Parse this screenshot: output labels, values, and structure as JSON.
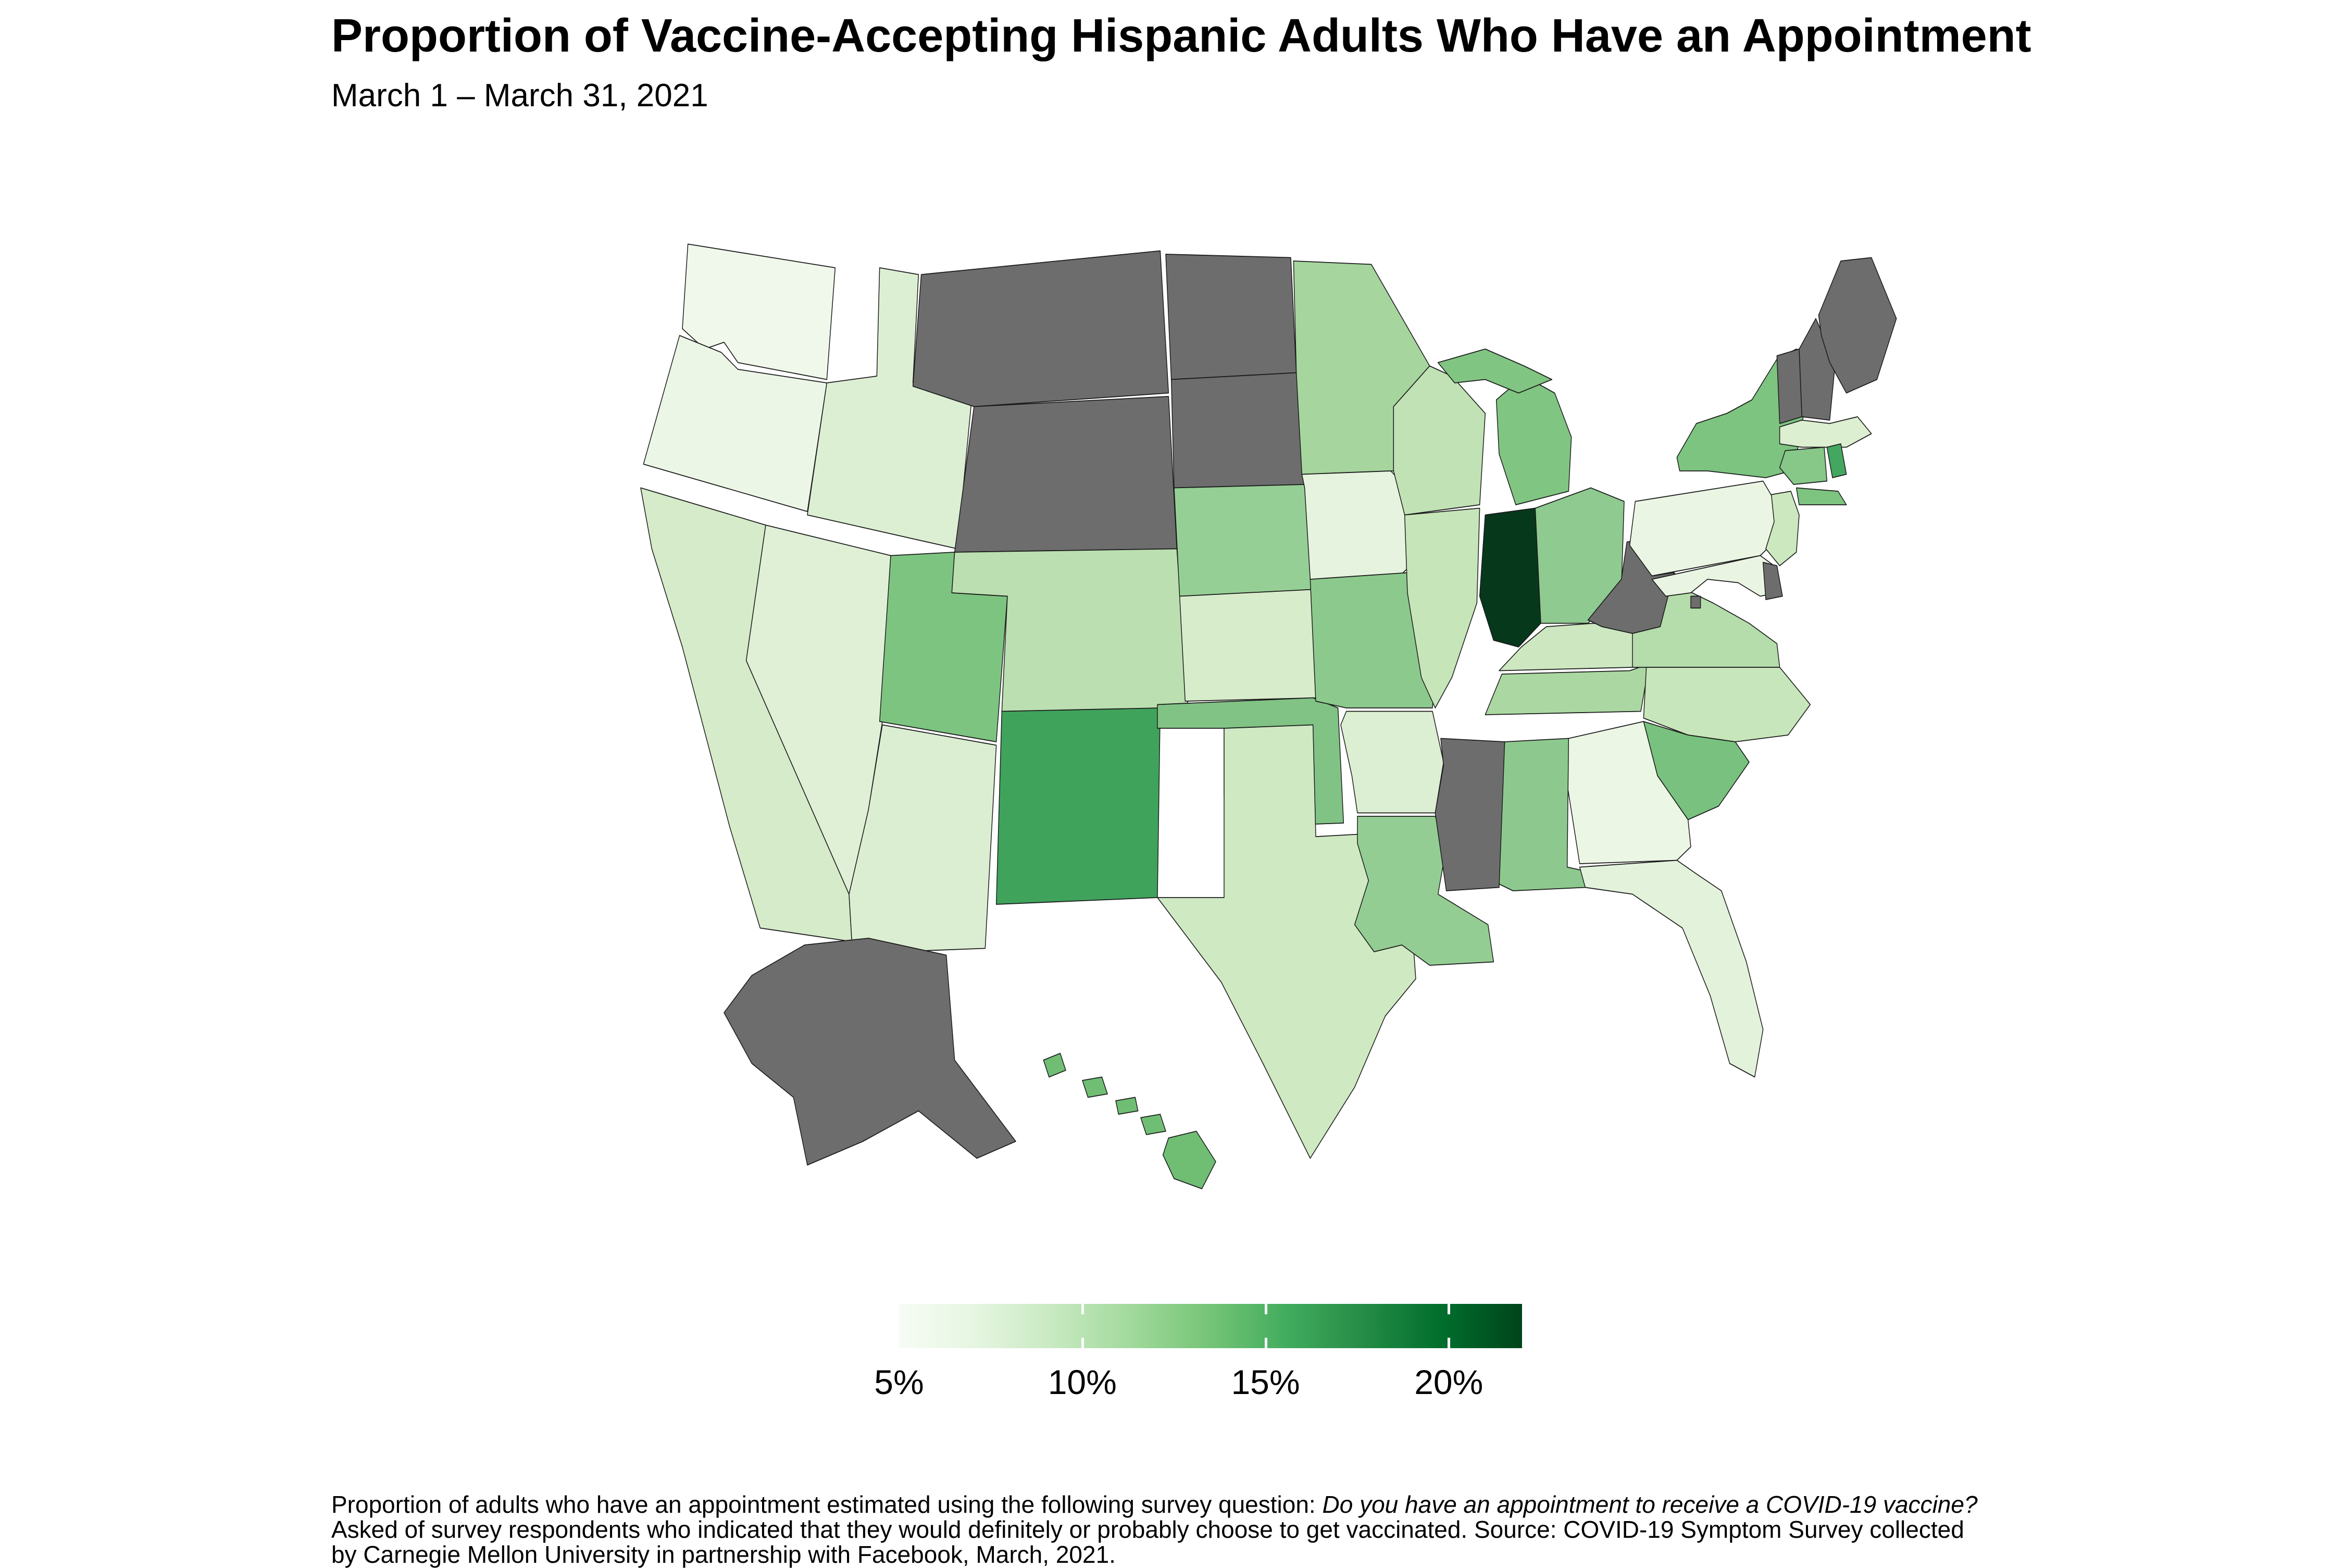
{
  "title": "Proportion of Vaccine-Accepting Hispanic Adults Who Have an Appointment",
  "subtitle": "March 1 – March 31, 2021",
  "legend": {
    "ticks": [
      "5%",
      "10%",
      "15%",
      "20%"
    ],
    "tick_values_pct": [
      5,
      10,
      15,
      20
    ],
    "scale_min_pct": 5,
    "scale_max_pct": 22,
    "gradient": [
      "#f7fcf5",
      "#e5f5e0",
      "#c7e9c0",
      "#a1d99b",
      "#74c476",
      "#41ab5d",
      "#238b45",
      "#006d2c",
      "#00441b"
    ],
    "no_data_color": "#6d6d6d"
  },
  "footnote": {
    "line1_normal": "Proportion of adults who have an appointment estimated using the following survey question: ",
    "line1_italic": "Do you have an appointment to receive a COVID-19 vaccine?",
    "line2": "Asked of survey respondents who indicated that they would definitely or probably choose to get vaccinated. Source: COVID-19 Symptom Survey collected",
    "line3": "by Carnegie Mellon University in partnership with Facebook, March, 2021."
  },
  "chart_data": {
    "type": "choropleth_map",
    "region": "United States (states, with Alaska and Hawaii insets)",
    "metric": "Proportion of vaccine-accepting Hispanic adults who have an appointment (%)",
    "date_range": "March 1 – March 31, 2021",
    "legend_position": "bottom-center horizontal colorbar",
    "scale": {
      "type": "sequential-greens",
      "min_pct": 5,
      "max_pct": 22,
      "no_data": "gray"
    },
    "states": [
      {
        "abbr": "WA",
        "name": "Washington",
        "value_pct_est": 5.8,
        "no_data": false,
        "fill": "#eff8eb"
      },
      {
        "abbr": "OR",
        "name": "Oregon",
        "value_pct_est": 6.1,
        "no_data": false,
        "fill": "#ecf6e7"
      },
      {
        "abbr": "CA",
        "name": "California",
        "value_pct_est": 8.4,
        "no_data": false,
        "fill": "#d5ebc9"
      },
      {
        "abbr": "NV",
        "name": "Nevada",
        "value_pct_est": 7.3,
        "no_data": false,
        "fill": "#e0f0d7"
      },
      {
        "abbr": "ID",
        "name": "Idaho",
        "value_pct_est": 8.0,
        "no_data": false,
        "fill": "#dcefd3"
      },
      {
        "abbr": "MT",
        "name": "Montana",
        "value_pct_est": null,
        "no_data": true,
        "fill": "#6d6d6d"
      },
      {
        "abbr": "WY",
        "name": "Wyoming",
        "value_pct_est": null,
        "no_data": true,
        "fill": "#6d6d6d"
      },
      {
        "abbr": "UT",
        "name": "Utah",
        "value_pct_est": 14.0,
        "no_data": false,
        "fill": "#7dc481"
      },
      {
        "abbr": "AZ",
        "name": "Arizona",
        "value_pct_est": 8.1,
        "no_data": false,
        "fill": "#dbeed1"
      },
      {
        "abbr": "CO",
        "name": "Colorado",
        "value_pct_est": 10.8,
        "no_data": false,
        "fill": "#bbdfb0"
      },
      {
        "abbr": "NM",
        "name": "New Mexico",
        "value_pct_est": 17.0,
        "no_data": false,
        "fill": "#3fa35c"
      },
      {
        "abbr": "ND",
        "name": "North Dakota",
        "value_pct_est": null,
        "no_data": true,
        "fill": "#6d6d6d"
      },
      {
        "abbr": "SD",
        "name": "South Dakota",
        "value_pct_est": null,
        "no_data": true,
        "fill": "#6d6d6d"
      },
      {
        "abbr": "NE",
        "name": "Nebraska",
        "value_pct_est": 12.8,
        "no_data": false,
        "fill": "#96cf96"
      },
      {
        "abbr": "KS",
        "name": "Kansas",
        "value_pct_est": 8.7,
        "no_data": false,
        "fill": "#d7ecca"
      },
      {
        "abbr": "OK",
        "name": "Oklahoma",
        "value_pct_est": 13.8,
        "no_data": false,
        "fill": "#80c384"
      },
      {
        "abbr": "TX",
        "name": "Texas",
        "value_pct_est": 9.2,
        "no_data": false,
        "fill": "#cfe9c3"
      },
      {
        "abbr": "MN",
        "name": "Minnesota",
        "value_pct_est": 11.6,
        "no_data": false,
        "fill": "#a6d59e"
      },
      {
        "abbr": "IA",
        "name": "Iowa",
        "value_pct_est": 6.6,
        "no_data": false,
        "fill": "#e6f3de"
      },
      {
        "abbr": "MO",
        "name": "Missouri",
        "value_pct_est": 13.4,
        "no_data": false,
        "fill": "#8cc98d"
      },
      {
        "abbr": "AR",
        "name": "Arkansas",
        "value_pct_est": 8.1,
        "no_data": false,
        "fill": "#dcefd2"
      },
      {
        "abbr": "LA",
        "name": "Louisiana",
        "value_pct_est": 12.4,
        "no_data": false,
        "fill": "#94cd93"
      },
      {
        "abbr": "WI",
        "name": "Wisconsin",
        "value_pct_est": 10.4,
        "no_data": false,
        "fill": "#c0e2b4"
      },
      {
        "abbr": "IL",
        "name": "Illinois",
        "value_pct_est": 10.2,
        "no_data": false,
        "fill": "#c6e5b9"
      },
      {
        "abbr": "MI",
        "name": "Michigan",
        "value_pct_est": 13.2,
        "no_data": false,
        "fill": "#81c583"
      },
      {
        "abbr": "IN",
        "name": "Indiana",
        "value_pct_est": 22.0,
        "no_data": false,
        "fill": "#06381c"
      },
      {
        "abbr": "OH",
        "name": "Ohio",
        "value_pct_est": 12.8,
        "no_data": false,
        "fill": "#8fca90"
      },
      {
        "abbr": "KY",
        "name": "Kentucky",
        "value_pct_est": 9.6,
        "no_data": false,
        "fill": "#cde8c1"
      },
      {
        "abbr": "TN",
        "name": "Tennessee",
        "value_pct_est": 11.4,
        "no_data": false,
        "fill": "#abd8a2"
      },
      {
        "abbr": "MS",
        "name": "Mississippi",
        "value_pct_est": null,
        "no_data": true,
        "fill": "#6d6d6d"
      },
      {
        "abbr": "AL",
        "name": "Alabama",
        "value_pct_est": 13.1,
        "no_data": false,
        "fill": "#8dc98e"
      },
      {
        "abbr": "GA",
        "name": "Georgia",
        "value_pct_est": 6.2,
        "no_data": false,
        "fill": "#ebf6e5"
      },
      {
        "abbr": "FL",
        "name": "Florida",
        "value_pct_est": 6.9,
        "no_data": false,
        "fill": "#e3f2db"
      },
      {
        "abbr": "SC",
        "name": "South Carolina",
        "value_pct_est": 14.0,
        "no_data": false,
        "fill": "#79c17e"
      },
      {
        "abbr": "NC",
        "name": "North Carolina",
        "value_pct_est": 9.8,
        "no_data": false,
        "fill": "#c8e6bb"
      },
      {
        "abbr": "VA",
        "name": "Virginia",
        "value_pct_est": 11.0,
        "no_data": false,
        "fill": "#b5dcab"
      },
      {
        "abbr": "WV",
        "name": "West Virginia",
        "value_pct_est": null,
        "no_data": true,
        "fill": "#6d6d6d"
      },
      {
        "abbr": "PA",
        "name": "Pennsylvania",
        "value_pct_est": 6.3,
        "no_data": false,
        "fill": "#eaf5e3"
      },
      {
        "abbr": "NY",
        "name": "New York",
        "value_pct_est": 13.9,
        "no_data": false,
        "fill": "#7cc480"
      },
      {
        "abbr": "NJ",
        "name": "New Jersey",
        "value_pct_est": 9.8,
        "no_data": false,
        "fill": "#cce8bf"
      },
      {
        "abbr": "DE",
        "name": "Delaware",
        "value_pct_est": null,
        "no_data": true,
        "fill": "#6d6d6d"
      },
      {
        "abbr": "MD",
        "name": "Maryland",
        "value_pct_est": 6.4,
        "no_data": false,
        "fill": "#e9f5e2"
      },
      {
        "abbr": "DC",
        "name": "District of Columbia",
        "value_pct_est": null,
        "no_data": true,
        "fill": "#6d6d6d"
      },
      {
        "abbr": "VT",
        "name": "Vermont",
        "value_pct_est": null,
        "no_data": true,
        "fill": "#6d6d6d"
      },
      {
        "abbr": "NH",
        "name": "New Hampshire",
        "value_pct_est": null,
        "no_data": true,
        "fill": "#6d6d6d"
      },
      {
        "abbr": "ME",
        "name": "Maine",
        "value_pct_est": null,
        "no_data": true,
        "fill": "#6d6d6d"
      },
      {
        "abbr": "MA",
        "name": "Massachusetts",
        "value_pct_est": 7.9,
        "no_data": false,
        "fill": "#dcefd1"
      },
      {
        "abbr": "CT",
        "name": "Connecticut",
        "value_pct_est": 13.0,
        "no_data": false,
        "fill": "#87c788"
      },
      {
        "abbr": "RI",
        "name": "Rhode Island",
        "value_pct_est": 16.2,
        "no_data": false,
        "fill": "#44a760"
      },
      {
        "abbr": "AK",
        "name": "Alaska",
        "value_pct_est": null,
        "no_data": true,
        "fill": "#6d6d6d"
      },
      {
        "abbr": "HI",
        "name": "Hawaii",
        "value_pct_est": 14.3,
        "no_data": false,
        "fill": "#6fbe74"
      }
    ]
  }
}
